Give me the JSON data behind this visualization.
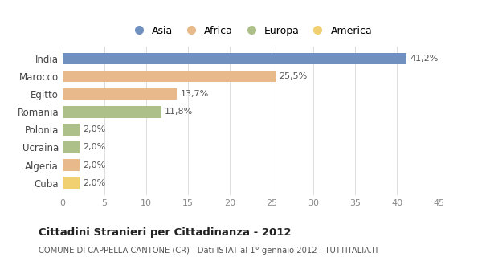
{
  "categories": [
    "India",
    "Marocco",
    "Egitto",
    "Romania",
    "Polonia",
    "Ucraina",
    "Algeria",
    "Cuba"
  ],
  "values": [
    41.2,
    25.5,
    13.7,
    11.8,
    2.0,
    2.0,
    2.0,
    2.0
  ],
  "labels": [
    "41,2%",
    "25,5%",
    "13,7%",
    "11,8%",
    "2,0%",
    "2,0%",
    "2,0%",
    "2,0%"
  ],
  "colors": [
    "#7090c0",
    "#e8b98a",
    "#e8b98a",
    "#adc08a",
    "#adc08a",
    "#adc08a",
    "#e8b98a",
    "#f0d070"
  ],
  "legend": [
    {
      "label": "Asia",
      "color": "#7090c0"
    },
    {
      "label": "Africa",
      "color": "#e8b98a"
    },
    {
      "label": "Europa",
      "color": "#adc08a"
    },
    {
      "label": "America",
      "color": "#f0d070"
    }
  ],
  "xlim": [
    0,
    45
  ],
  "xticks": [
    0,
    5,
    10,
    15,
    20,
    25,
    30,
    35,
    40,
    45
  ],
  "title": "Cittadini Stranieri per Cittadinanza - 2012",
  "subtitle": "COMUNE DI CAPPELLA CANTONE (CR) - Dati ISTAT al 1° gennaio 2012 - TUTTITALIA.IT",
  "background_color": "#ffffff",
  "bar_height": 0.65,
  "grid_color": "#dddddd"
}
